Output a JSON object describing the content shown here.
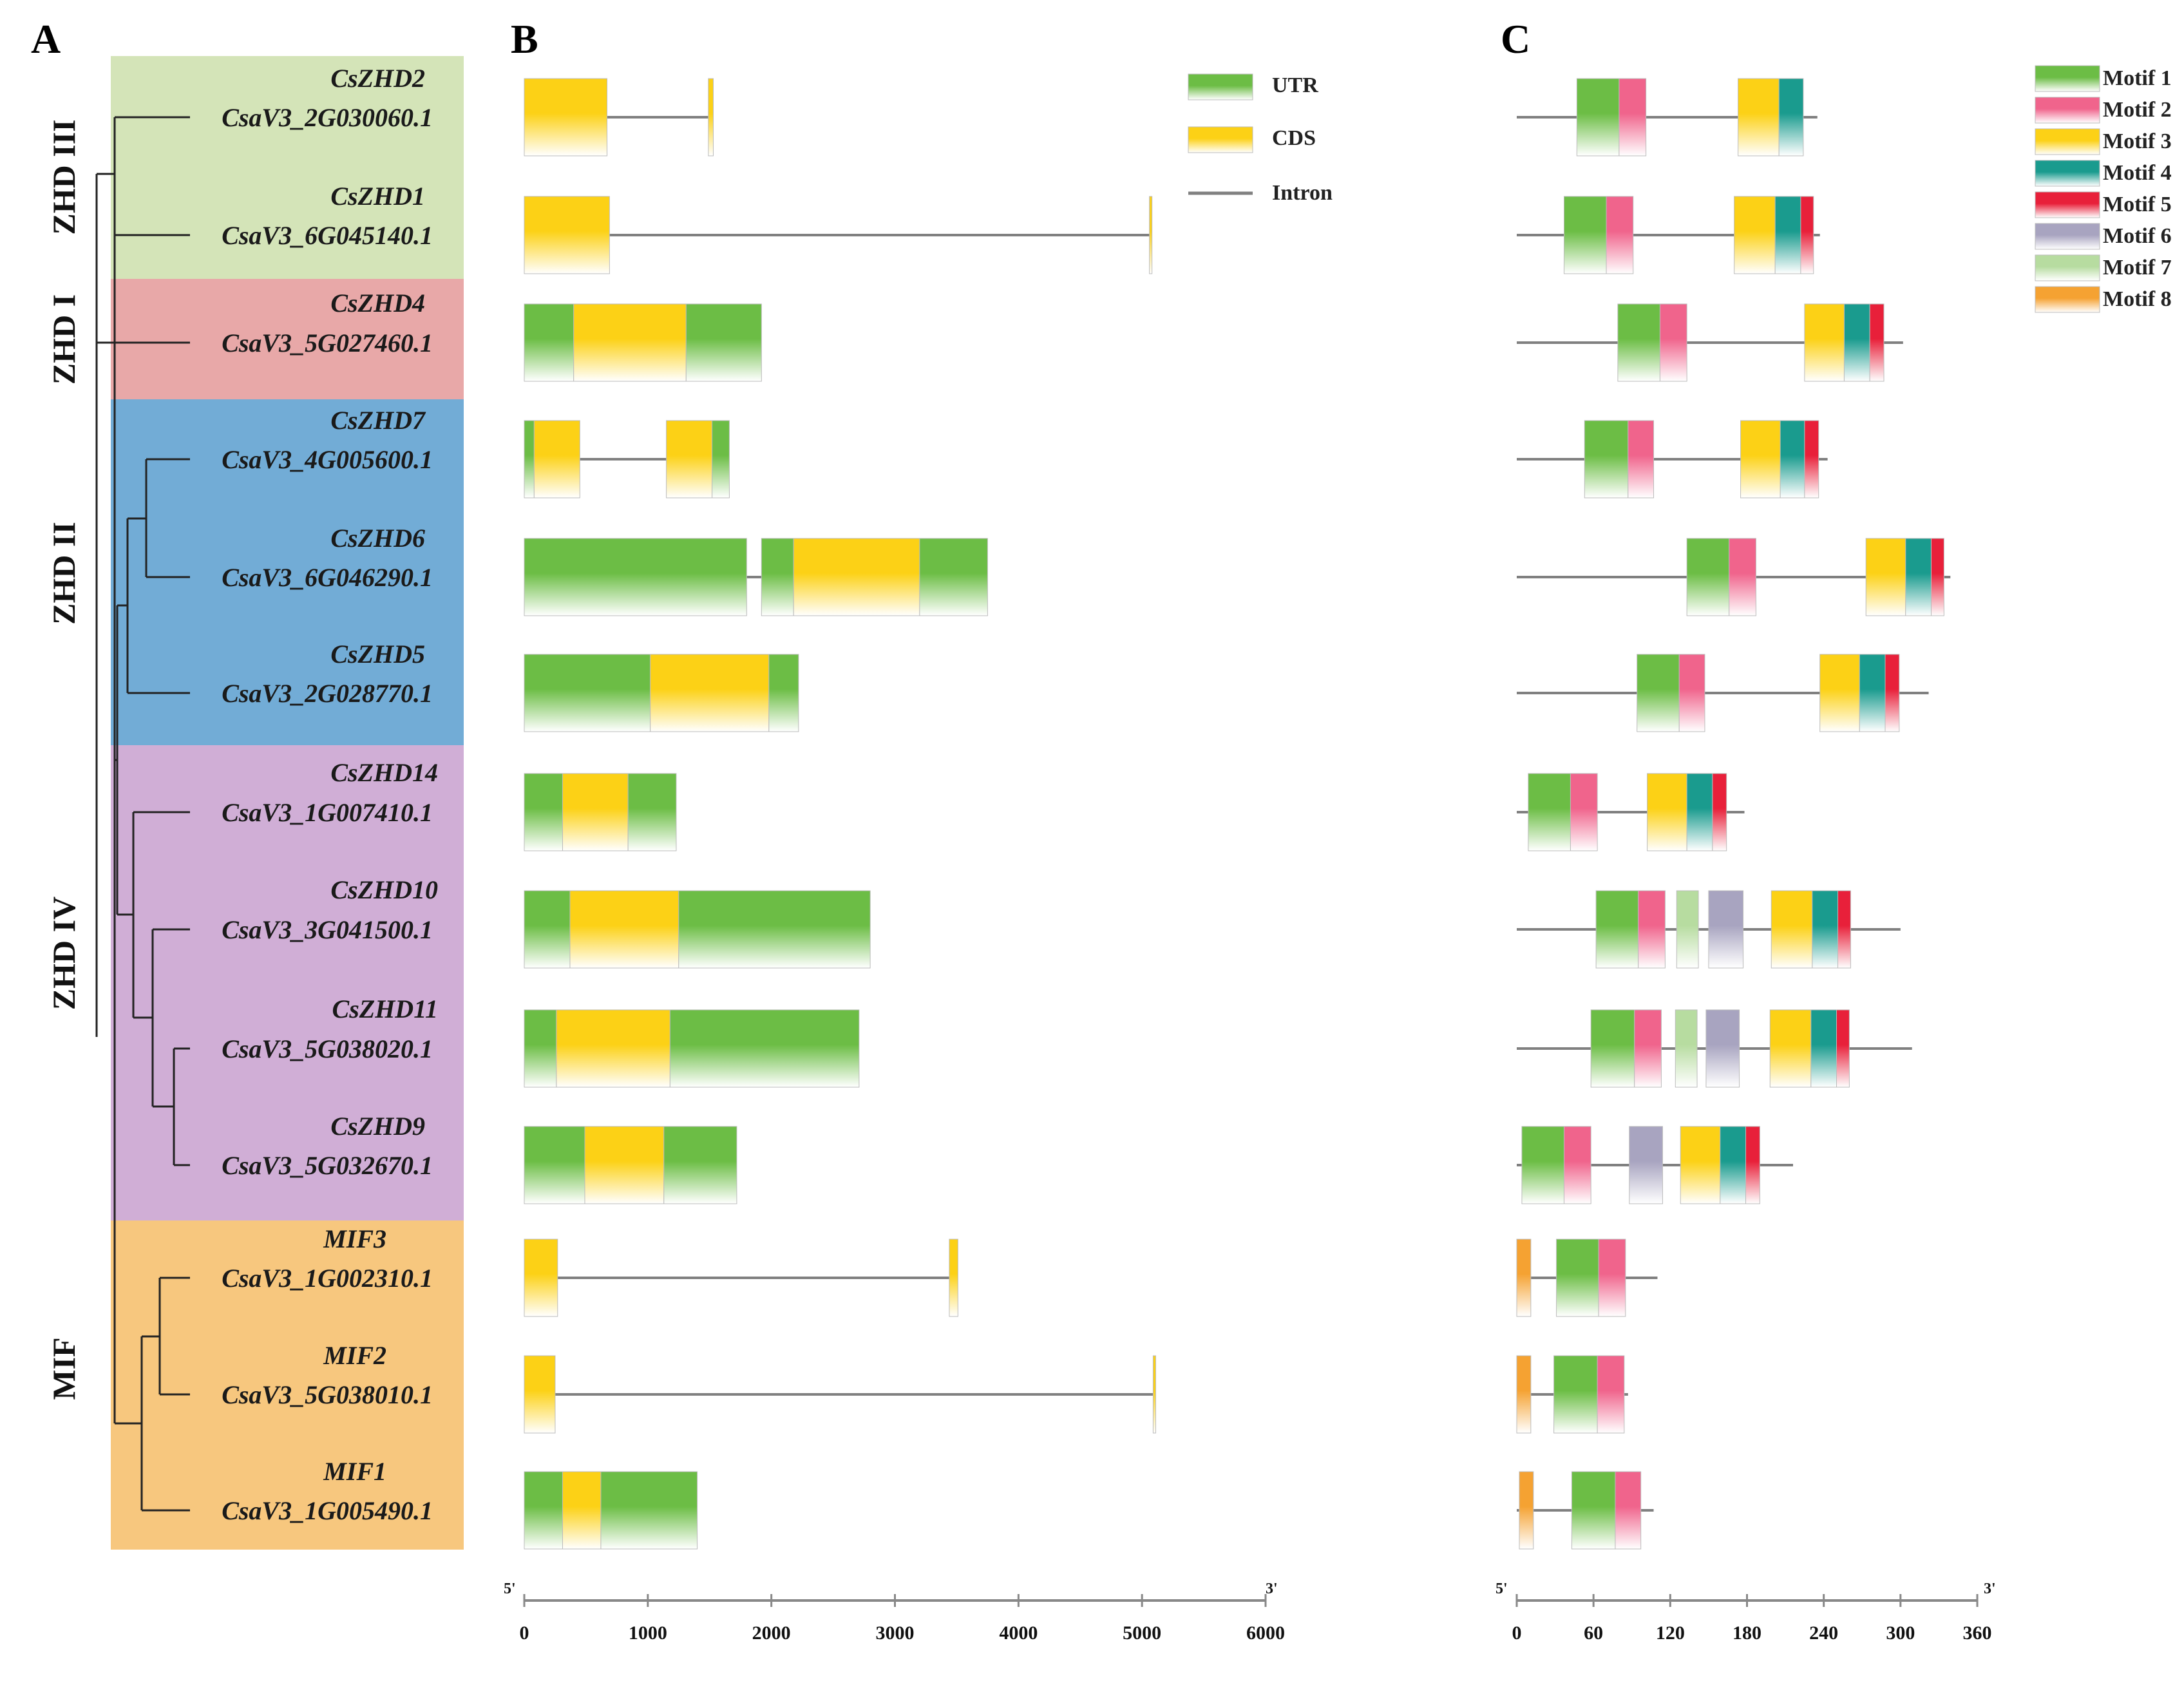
{
  "panels": {
    "a": "A",
    "b": "B",
    "c": "C"
  },
  "colors": {
    "clade_ZHD_III": "#d4e4b8",
    "clade_ZHD_I": "#e8a8a8",
    "clade_ZHD_II": "#72acd6",
    "clade_ZHD_IV": "#d0aed6",
    "clade_MIF": "#f7c77e",
    "utr": "#6cbd45",
    "cds": "#fcd116",
    "intron": "#808080",
    "motif1": "#6cbd45",
    "motif2": "#f0648c",
    "motif3": "#fcd116",
    "motif4": "#1a9b8e",
    "motif5": "#e8203a",
    "motif6": "#a8a4c0",
    "motif7": "#b7dca0",
    "motif8": "#f5a232"
  },
  "clades": [
    {
      "key": "ZHD_III",
      "label": "ZHD III"
    },
    {
      "key": "ZHD_I",
      "label": "ZHD I"
    },
    {
      "key": "ZHD_II",
      "label": "ZHD II"
    },
    {
      "key": "ZHD_IV",
      "label": "ZHD IV"
    },
    {
      "key": "MIF",
      "label": "MIF"
    }
  ],
  "genes": [
    {
      "name": "CsZHD2",
      "id": "CsaV3_2G030060.1",
      "clade": "ZHD_III"
    },
    {
      "name": "CsZHD1",
      "id": "CsaV3_6G045140.1",
      "clade": "ZHD_III"
    },
    {
      "name": "CsZHD4",
      "id": "CsaV3_5G027460.1",
      "clade": "ZHD_I"
    },
    {
      "name": "CsZHD7",
      "id": "CsaV3_4G005600.1",
      "clade": "ZHD_II"
    },
    {
      "name": "CsZHD6",
      "id": "CsaV3_6G046290.1",
      "clade": "ZHD_II"
    },
    {
      "name": "CsZHD5",
      "id": "CsaV3_2G028770.1",
      "clade": "ZHD_II"
    },
    {
      "name": "CsZHD14",
      "id": "CsaV3_1G007410.1",
      "clade": "ZHD_IV"
    },
    {
      "name": "CsZHD10",
      "id": "CsaV3_3G041500.1",
      "clade": "ZHD_IV"
    },
    {
      "name": "CsZHD11",
      "id": "CsaV3_5G038020.1",
      "clade": "ZHD_IV"
    },
    {
      "name": "CsZHD9",
      "id": "CsaV3_5G032670.1",
      "clade": "ZHD_IV"
    },
    {
      "name": "MIF3",
      "id": "CsaV3_1G002310.1",
      "clade": "MIF"
    },
    {
      "name": "MIF2",
      "id": "CsaV3_5G038010.1",
      "clade": "MIF"
    },
    {
      "name": "MIF1",
      "id": "CsaV3_1G005490.1",
      "clade": "MIF"
    }
  ],
  "chart_data": [
    {
      "type": "gene-structure",
      "panel": "B",
      "legend": {
        "utr": "UTR",
        "cds": "CDS",
        "intron": "Intron"
      },
      "axis": {
        "start_label": "5'",
        "end_label": "3'",
        "range": [
          0,
          6000
        ],
        "ticks": [
          0,
          1000,
          2000,
          3000,
          4000,
          5000,
          6000
        ],
        "unit": "bp"
      },
      "structures": [
        {
          "gene": "CsaV3_2G030060.1",
          "length": 1530,
          "exons": [
            {
              "type": "cds",
              "start": 0,
              "end": 670
            },
            {
              "type": "cds",
              "start": 1490,
              "end": 1530
            }
          ]
        },
        {
          "gene": "CsaV3_6G045140.1",
          "length": 5080,
          "exons": [
            {
              "type": "cds",
              "start": 0,
              "end": 690
            },
            {
              "type": "cds",
              "start": 5060,
              "end": 5080
            }
          ]
        },
        {
          "gene": "CsaV3_5G027460.1",
          "length": 1920,
          "exons": [
            {
              "type": "utr",
              "start": 0,
              "end": 400
            },
            {
              "type": "cds",
              "start": 400,
              "end": 1310
            },
            {
              "type": "utr",
              "start": 1310,
              "end": 1920
            }
          ]
        },
        {
          "gene": "CsaV3_4G005600.1",
          "length": 1660,
          "exons": [
            {
              "type": "utr",
              "start": 0,
              "end": 80
            },
            {
              "type": "cds",
              "start": 80,
              "end": 450
            },
            {
              "type": "cds",
              "start": 1150,
              "end": 1520
            },
            {
              "type": "utr",
              "start": 1520,
              "end": 1660
            }
          ]
        },
        {
          "gene": "CsaV3_6G046290.1",
          "length": 3750,
          "exons": [
            {
              "type": "utr",
              "start": 0,
              "end": 1800
            },
            {
              "type": "utr",
              "start": 1920,
              "end": 2180
            },
            {
              "type": "cds",
              "start": 2180,
              "end": 3200
            },
            {
              "type": "utr",
              "start": 3200,
              "end": 3750
            }
          ]
        },
        {
          "gene": "CsaV3_2G028770.1",
          "length": 2220,
          "exons": [
            {
              "type": "utr",
              "start": 0,
              "end": 1020
            },
            {
              "type": "cds",
              "start": 1020,
              "end": 1980
            },
            {
              "type": "utr",
              "start": 1980,
              "end": 2220
            }
          ]
        },
        {
          "gene": "CsaV3_1G007410.1",
          "length": 1230,
          "exons": [
            {
              "type": "utr",
              "start": 0,
              "end": 310
            },
            {
              "type": "cds",
              "start": 310,
              "end": 840
            },
            {
              "type": "utr",
              "start": 840,
              "end": 1230
            }
          ]
        },
        {
          "gene": "CsaV3_3G041500.1",
          "length": 2800,
          "exons": [
            {
              "type": "utr",
              "start": 0,
              "end": 370
            },
            {
              "type": "cds",
              "start": 370,
              "end": 1250
            },
            {
              "type": "utr",
              "start": 1250,
              "end": 2800
            }
          ]
        },
        {
          "gene": "CsaV3_5G038020.1",
          "length": 2710,
          "exons": [
            {
              "type": "utr",
              "start": 0,
              "end": 260
            },
            {
              "type": "cds",
              "start": 260,
              "end": 1180
            },
            {
              "type": "utr",
              "start": 1180,
              "end": 2710
            }
          ]
        },
        {
          "gene": "CsaV3_5G032670.1",
          "length": 1720,
          "exons": [
            {
              "type": "utr",
              "start": 0,
              "end": 490
            },
            {
              "type": "cds",
              "start": 490,
              "end": 1130
            },
            {
              "type": "utr",
              "start": 1130,
              "end": 1720
            }
          ]
        },
        {
          "gene": "CsaV3_1G002310.1",
          "length": 3510,
          "exons": [
            {
              "type": "cds",
              "start": 0,
              "end": 270
            },
            {
              "type": "cds",
              "start": 3440,
              "end": 3510
            }
          ]
        },
        {
          "gene": "CsaV3_5G038010.1",
          "length": 5100,
          "exons": [
            {
              "type": "cds",
              "start": 0,
              "end": 250
            },
            {
              "type": "cds",
              "start": 5090,
              "end": 5100
            }
          ]
        },
        {
          "gene": "CsaV3_1G005490.1",
          "length": 1400,
          "exons": [
            {
              "type": "utr",
              "start": 0,
              "end": 310
            },
            {
              "type": "cds",
              "start": 310,
              "end": 620
            },
            {
              "type": "utr",
              "start": 620,
              "end": 1400
            }
          ]
        }
      ]
    },
    {
      "type": "motif-distribution",
      "panel": "C",
      "legend": [
        "Motif 1",
        "Motif 2",
        "Motif 3",
        "Motif 4",
        "Motif 5",
        "Motif 6",
        "Motif 7",
        "Motif 8"
      ],
      "axis": {
        "start_label": "5'",
        "end_label": "3'",
        "range": [
          0,
          360
        ],
        "ticks": [
          0,
          60,
          120,
          180,
          240,
          300,
          360
        ],
        "unit": "aa"
      },
      "proteins": [
        {
          "gene": "CsaV3_2G030060.1",
          "length": 235,
          "motifs": [
            {
              "m": 1,
              "s": 47,
              "e": 80
            },
            {
              "m": 2,
              "s": 80,
              "e": 101
            },
            {
              "m": 3,
              "s": 173,
              "e": 205
            },
            {
              "m": 4,
              "s": 205,
              "e": 224
            }
          ]
        },
        {
          "gene": "CsaV3_6G045140.1",
          "length": 237,
          "motifs": [
            {
              "m": 1,
              "s": 37,
              "e": 70
            },
            {
              "m": 2,
              "s": 70,
              "e": 91
            },
            {
              "m": 3,
              "s": 170,
              "e": 202
            },
            {
              "m": 4,
              "s": 202,
              "e": 222
            },
            {
              "m": 5,
              "s": 222,
              "e": 232
            }
          ]
        },
        {
          "gene": "CsaV3_5G027460.1",
          "length": 302,
          "motifs": [
            {
              "m": 1,
              "s": 79,
              "e": 112
            },
            {
              "m": 2,
              "s": 112,
              "e": 133
            },
            {
              "m": 3,
              "s": 225,
              "e": 256
            },
            {
              "m": 4,
              "s": 256,
              "e": 276
            },
            {
              "m": 5,
              "s": 276,
              "e": 287
            }
          ]
        },
        {
          "gene": "CsaV3_4G005600.1",
          "length": 243,
          "motifs": [
            {
              "m": 1,
              "s": 53,
              "e": 87
            },
            {
              "m": 2,
              "s": 87,
              "e": 107
            },
            {
              "m": 3,
              "s": 175,
              "e": 206
            },
            {
              "m": 4,
              "s": 206,
              "e": 225
            },
            {
              "m": 5,
              "s": 225,
              "e": 236
            }
          ]
        },
        {
          "gene": "CsaV3_6G046290.1",
          "length": 339,
          "motifs": [
            {
              "m": 1,
              "s": 133,
              "e": 166
            },
            {
              "m": 2,
              "s": 166,
              "e": 187
            },
            {
              "m": 3,
              "s": 273,
              "e": 304
            },
            {
              "m": 4,
              "s": 304,
              "e": 324
            },
            {
              "m": 5,
              "s": 324,
              "e": 334
            }
          ]
        },
        {
          "gene": "CsaV3_2G028770.1",
          "length": 322,
          "motifs": [
            {
              "m": 1,
              "s": 94,
              "e": 127
            },
            {
              "m": 2,
              "s": 127,
              "e": 147
            },
            {
              "m": 3,
              "s": 237,
              "e": 268
            },
            {
              "m": 4,
              "s": 268,
              "e": 288
            },
            {
              "m": 5,
              "s": 288,
              "e": 299
            }
          ]
        },
        {
          "gene": "CsaV3_1G007410.1",
          "length": 178,
          "motifs": [
            {
              "m": 1,
              "s": 9,
              "e": 42
            },
            {
              "m": 2,
              "s": 42,
              "e": 63
            },
            {
              "m": 3,
              "s": 102,
              "e": 133
            },
            {
              "m": 4,
              "s": 133,
              "e": 153
            },
            {
              "m": 5,
              "s": 153,
              "e": 164
            }
          ]
        },
        {
          "gene": "CsaV3_3G041500.1",
          "length": 300,
          "motifs": [
            {
              "m": 1,
              "s": 62,
              "e": 95
            },
            {
              "m": 2,
              "s": 95,
              "e": 116
            },
            {
              "m": 7,
              "s": 125,
              "e": 142
            },
            {
              "m": 6,
              "s": 150,
              "e": 177
            },
            {
              "m": 3,
              "s": 199,
              "e": 231
            },
            {
              "m": 4,
              "s": 231,
              "e": 251
            },
            {
              "m": 5,
              "s": 251,
              "e": 261
            }
          ]
        },
        {
          "gene": "CsaV3_5G038020.1",
          "length": 309,
          "motifs": [
            {
              "m": 1,
              "s": 58,
              "e": 92
            },
            {
              "m": 2,
              "s": 92,
              "e": 113
            },
            {
              "m": 7,
              "s": 124,
              "e": 141
            },
            {
              "m": 6,
              "s": 148,
              "e": 174
            },
            {
              "m": 3,
              "s": 198,
              "e": 230
            },
            {
              "m": 4,
              "s": 230,
              "e": 250
            },
            {
              "m": 5,
              "s": 250,
              "e": 260
            }
          ]
        },
        {
          "gene": "CsaV3_5G032670.1",
          "length": 216,
          "motifs": [
            {
              "m": 1,
              "s": 4,
              "e": 37
            },
            {
              "m": 2,
              "s": 37,
              "e": 58
            },
            {
              "m": 6,
              "s": 88,
              "e": 114
            },
            {
              "m": 3,
              "s": 128,
              "e": 159
            },
            {
              "m": 4,
              "s": 159,
              "e": 179
            },
            {
              "m": 5,
              "s": 179,
              "e": 190
            }
          ]
        },
        {
          "gene": "CsaV3_1G002310.1",
          "length": 110,
          "motifs": [
            {
              "m": 8,
              "s": 0,
              "e": 11
            },
            {
              "m": 1,
              "s": 31,
              "e": 64
            },
            {
              "m": 2,
              "s": 64,
              "e": 85
            }
          ]
        },
        {
          "gene": "CsaV3_5G038010.1",
          "length": 87,
          "motifs": [
            {
              "m": 8,
              "s": 0,
              "e": 11
            },
            {
              "m": 1,
              "s": 29,
              "e": 63
            },
            {
              "m": 2,
              "s": 63,
              "e": 84
            }
          ]
        },
        {
          "gene": "CsaV3_1G005490.1",
          "length": 107,
          "motifs": [
            {
              "m": 8,
              "s": 2,
              "e": 13
            },
            {
              "m": 1,
              "s": 43,
              "e": 77
            },
            {
              "m": 2,
              "s": 77,
              "e": 97
            }
          ]
        }
      ]
    }
  ]
}
